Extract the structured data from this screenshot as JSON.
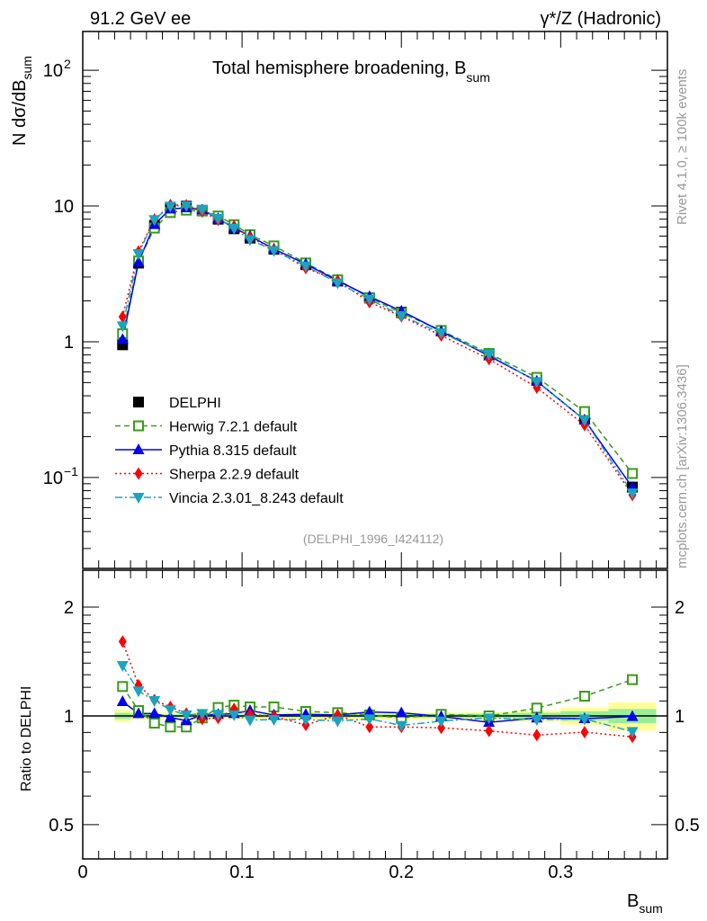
{
  "header": {
    "left": "91.2 GeV ee",
    "right": "γ*/Z (Hadronic)",
    "side_top": "Rivet 4.1.0, ≥ 100k events",
    "side_bottom": "mcplots.cern.ch [arXiv:1306.3436]"
  },
  "chart_data": [
    {
      "type": "line",
      "panel": "main",
      "title": "Total hemisphere broadening, B",
      "title_sub": "sum",
      "ylabel": "N  dσ/dB",
      "ylabel_sub": "sum",
      "yscale": "log",
      "ylim": [
        0.0214,
        193
      ],
      "xlim": [
        0,
        0.367
      ],
      "ytick_labels": [
        {
          "v": 100,
          "base": "10",
          "exp": "2"
        },
        {
          "v": 10,
          "base": "10",
          "exp": ""
        },
        {
          "v": 1,
          "base": "1",
          "exp": ""
        },
        {
          "v": 0.1,
          "base": "10",
          "exp": "−1"
        }
      ],
      "annotation": "(DELPHI_1996_I424112)",
      "legend_position": "lower-left",
      "x": [
        0.025,
        0.035,
        0.045,
        0.055,
        0.065,
        0.075,
        0.085,
        0.095,
        0.105,
        0.12,
        0.14,
        0.16,
        0.18,
        0.2,
        0.225,
        0.255,
        0.285,
        0.315,
        0.345
      ],
      "bin_edges": [
        0.02,
        0.03,
        0.04,
        0.05,
        0.06,
        0.07,
        0.08,
        0.09,
        0.1,
        0.11,
        0.13,
        0.15,
        0.17,
        0.19,
        0.21,
        0.24,
        0.27,
        0.3,
        0.33,
        0.36
      ],
      "data": {
        "name": "DELPHI",
        "values": [
          0.95,
          3.8,
          7.2,
          9.6,
          10.0,
          9.3,
          8.0,
          6.8,
          5.8,
          4.8,
          3.7,
          2.8,
          2.1,
          1.65,
          1.2,
          0.82,
          0.52,
          0.27,
          0.085
        ]
      },
      "series": [
        {
          "name": "Herwig 7.2.1 default",
          "color": "#3a9a1a",
          "marker": "open-square",
          "dash": "6,4",
          "ratio": [
            1.206,
            1.035,
            0.955,
            0.932,
            0.932,
            0.987,
            1.055,
            1.071,
            1.059,
            1.059,
            1.029,
            1.021,
            1.006,
            0.987,
            1.01,
            1.0,
            1.051,
            1.134,
            1.26
          ]
        },
        {
          "name": "Pythia 8.315 default",
          "color": "#0000ee",
          "marker": "triangle-up",
          "dash": "",
          "ratio": [
            1.096,
            1.015,
            1.015,
            0.99,
            0.97,
            1.006,
            1.01,
            1.015,
            1.035,
            1.006,
            1.01,
            1.006,
            1.025,
            1.02,
            0.996,
            0.96,
            0.987,
            0.983,
            0.996
          ]
        },
        {
          "name": "Sherpa 2.2.9 default",
          "color": "#ff0000",
          "marker": "diamond",
          "dash": "2,3",
          "ratio": [
            1.606,
            1.217,
            1.106,
            1.059,
            1.015,
            0.981,
            0.987,
            1.045,
            1.01,
            0.996,
            0.944,
            1.006,
            0.932,
            0.932,
            0.927,
            0.909,
            0.885,
            0.902,
            0.875
          ]
        },
        {
          "name": "Vincia 2.3.01_8.243 default",
          "color": "#1ba3c0",
          "marker": "triangle-down",
          "dash": "8,3,2,3",
          "ratio": [
            1.378,
            1.172,
            1.102,
            1.039,
            1.006,
            1.015,
            1.01,
            1.006,
            0.974,
            0.977,
            0.977,
            0.968,
            0.981,
            0.941,
            0.968,
            0.987,
            0.977,
            0.981,
            0.905
          ]
        }
      ]
    },
    {
      "type": "line",
      "panel": "ratio",
      "ylabel": "Ratio to DELPHI",
      "xlabel": "B",
      "xlabel_sub": "sum",
      "yscale": "log",
      "ylim": [
        0.402,
        2.53
      ],
      "ytick_labels": [
        {
          "v": 2,
          "label": "2"
        },
        {
          "v": 1,
          "label": "1"
        },
        {
          "v": 0.5,
          "label": "0.5"
        }
      ],
      "xtick_labels": [
        {
          "v": 0,
          "label": "0"
        },
        {
          "v": 0.1,
          "label": "0.1"
        },
        {
          "v": 0.2,
          "label": "0.2"
        },
        {
          "v": 0.3,
          "label": "0.3"
        }
      ],
      "band_total_rel": [
        0.04,
        0.025,
        0.025,
        0.022,
        0.022,
        0.022,
        0.022,
        0.022,
        0.022,
        0.022,
        0.022,
        0.022,
        0.022,
        0.022,
        0.022,
        0.025,
        0.035,
        0.055,
        0.09
      ],
      "band_stat_rel": [
        0.02,
        0.012,
        0.012,
        0.01,
        0.01,
        0.01,
        0.01,
        0.01,
        0.01,
        0.01,
        0.01,
        0.01,
        0.01,
        0.01,
        0.012,
        0.014,
        0.02,
        0.03,
        0.045
      ],
      "band_colors": {
        "total": "#ffff99",
        "stat": "#99ee99"
      }
    }
  ]
}
